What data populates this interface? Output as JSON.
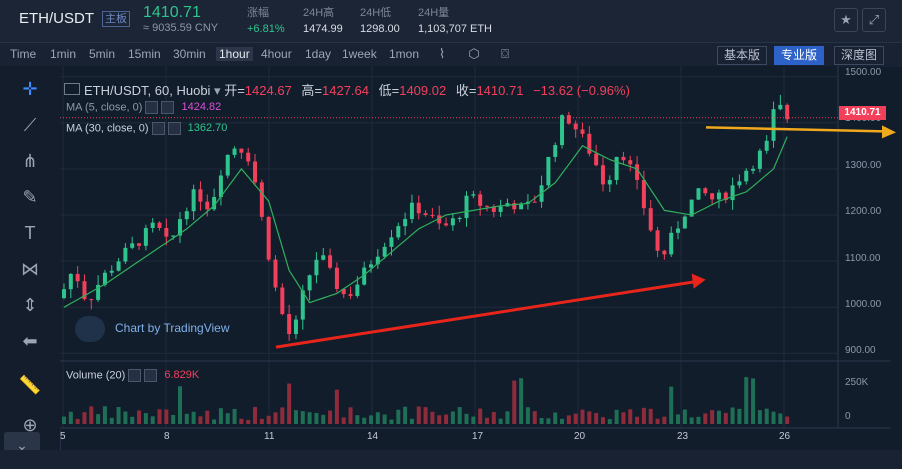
{
  "header": {
    "pair": "ETH/USDT",
    "badge": "主板",
    "price": "1410.71",
    "cny": "≈ 9035.59 CNY",
    "stats": [
      {
        "label": "涨幅",
        "value": "+6.81%"
      },
      {
        "label": "24H高",
        "value": "1474.99"
      },
      {
        "label": "24H低",
        "value": "1298.00"
      },
      {
        "label": "24H量",
        "value": "1,103,707 ETH"
      }
    ],
    "icons": [
      "star-icon",
      "expand-icon"
    ]
  },
  "toolbar": {
    "timeframes": [
      "Time",
      "1min",
      "5min",
      "15min",
      "30min",
      "1hour",
      "4hour",
      "1day",
      "1week",
      "1mon"
    ],
    "active_timeframe": "1hour",
    "icons": [
      "indicator-icon",
      "settings-icon",
      "screenshot-icon"
    ],
    "versions": [
      "基本版",
      "专业版",
      "深度图"
    ],
    "active_version": "专业版"
  },
  "sidebar": {
    "tools": [
      "crosshair-icon",
      "trend-line-icon",
      "pitchfork-icon",
      "brush-icon",
      "text-icon",
      "pattern-icon",
      "measure-icon",
      "back-arrow-icon",
      "ruler-icon",
      "zoom-in-icon",
      "collapse-icon"
    ]
  },
  "legend": {
    "symbol": "ETH/USDT, 60, Huobi",
    "open_label": "开=",
    "open": "1424.67",
    "high_label": "高=",
    "high": "1427.64",
    "low_label": "低=",
    "low": "1409.02",
    "close_label": "收=",
    "close": "1410.71",
    "change": "−13.62 (−0.96%)",
    "ma5_label": "MA (5, close, 0)",
    "ma5_value": "1424.82",
    "ma30_label": "MA (30, close, 0)",
    "ma30_value": "1362.70",
    "volume_label": "Volume (20)",
    "volume_value": "6.829K"
  },
  "watermark": "Chart by TradingView",
  "price_axis": {
    "ticks": [
      "1500.00",
      "1400.00",
      "1300.00",
      "1200.00",
      "1100.00",
      "1000.00",
      "900.00"
    ],
    "current_price": "1410.71",
    "volume_ticks": [
      "250K",
      "0"
    ]
  },
  "date_axis": [
    "5",
    "8",
    "11",
    "14",
    "17",
    "20",
    "23",
    "26"
  ],
  "colors": {
    "up": "#2fc48d",
    "down": "#f2405b",
    "ma5": "#d94fd6",
    "ma30": "#2fb05c",
    "annotation_red": "#e8251a",
    "annotation_orange": "#f0a81c",
    "accent": "#2d63c8"
  },
  "chart_data": {
    "type": "candlestick",
    "timeframe": "60",
    "ylim": [
      890,
      1510
    ],
    "x": [
      "5",
      "8",
      "11",
      "14",
      "17",
      "20",
      "23",
      "26"
    ],
    "price_path": [
      [
        0,
        1020
      ],
      [
        2,
        1085
      ],
      [
        4,
        1010
      ],
      [
        6,
        1060
      ],
      [
        9,
        1110
      ],
      [
        12,
        1150
      ],
      [
        14,
        1180
      ],
      [
        16,
        1130
      ],
      [
        18,
        1210
      ],
      [
        20,
        1250
      ],
      [
        22,
        1215
      ],
      [
        24,
        1320
      ],
      [
        26,
        1355
      ],
      [
        28,
        1320
      ],
      [
        30,
        1160
      ],
      [
        32,
        1010
      ],
      [
        34,
        925
      ],
      [
        36,
        1050
      ],
      [
        38,
        1120
      ],
      [
        40,
        1060
      ],
      [
        42,
        1020
      ],
      [
        44,
        1060
      ],
      [
        46,
        1110
      ],
      [
        48,
        1150
      ],
      [
        50,
        1190
      ],
      [
        52,
        1220
      ],
      [
        54,
        1200
      ],
      [
        56,
        1170
      ],
      [
        58,
        1190
      ],
      [
        60,
        1240
      ],
      [
        62,
        1220
      ],
      [
        64,
        1210
      ],
      [
        66,
        1230
      ],
      [
        68,
        1210
      ],
      [
        70,
        1240
      ],
      [
        72,
        1340
      ],
      [
        74,
        1420
      ],
      [
        76,
        1380
      ],
      [
        78,
        1330
      ],
      [
        80,
        1260
      ],
      [
        82,
        1350
      ],
      [
        84,
        1290
      ],
      [
        86,
        1200
      ],
      [
        88,
        1100
      ],
      [
        90,
        1160
      ],
      [
        92,
        1220
      ],
      [
        94,
        1250
      ],
      [
        96,
        1230
      ],
      [
        98,
        1250
      ],
      [
        100,
        1290
      ],
      [
        102,
        1320
      ],
      [
        104,
        1360
      ],
      [
        105,
        1460
      ],
      [
        106,
        1411
      ]
    ],
    "ma30_path": [
      [
        0,
        1000
      ],
      [
        6,
        1050
      ],
      [
        12,
        1110
      ],
      [
        18,
        1170
      ],
      [
        22,
        1220
      ],
      [
        26,
        1300
      ],
      [
        30,
        1230
      ],
      [
        33,
        1080
      ],
      [
        36,
        1010
      ],
      [
        40,
        1030
      ],
      [
        44,
        1070
      ],
      [
        48,
        1120
      ],
      [
        52,
        1170
      ],
      [
        56,
        1200
      ],
      [
        60,
        1210
      ],
      [
        64,
        1220
      ],
      [
        68,
        1225
      ],
      [
        72,
        1270
      ],
      [
        76,
        1350
      ],
      [
        80,
        1320
      ],
      [
        84,
        1300
      ],
      [
        88,
        1210
      ],
      [
        92,
        1200
      ],
      [
        96,
        1230
      ],
      [
        100,
        1250
      ],
      [
        104,
        1300
      ],
      [
        106,
        1370
      ]
    ],
    "annotations": [
      {
        "type": "arrow",
        "color": "red",
        "from": [
          34,
          905
        ],
        "to": [
          92,
          1060
        ]
      },
      {
        "type": "arrow",
        "color": "orange",
        "level": 1390
      }
    ]
  }
}
